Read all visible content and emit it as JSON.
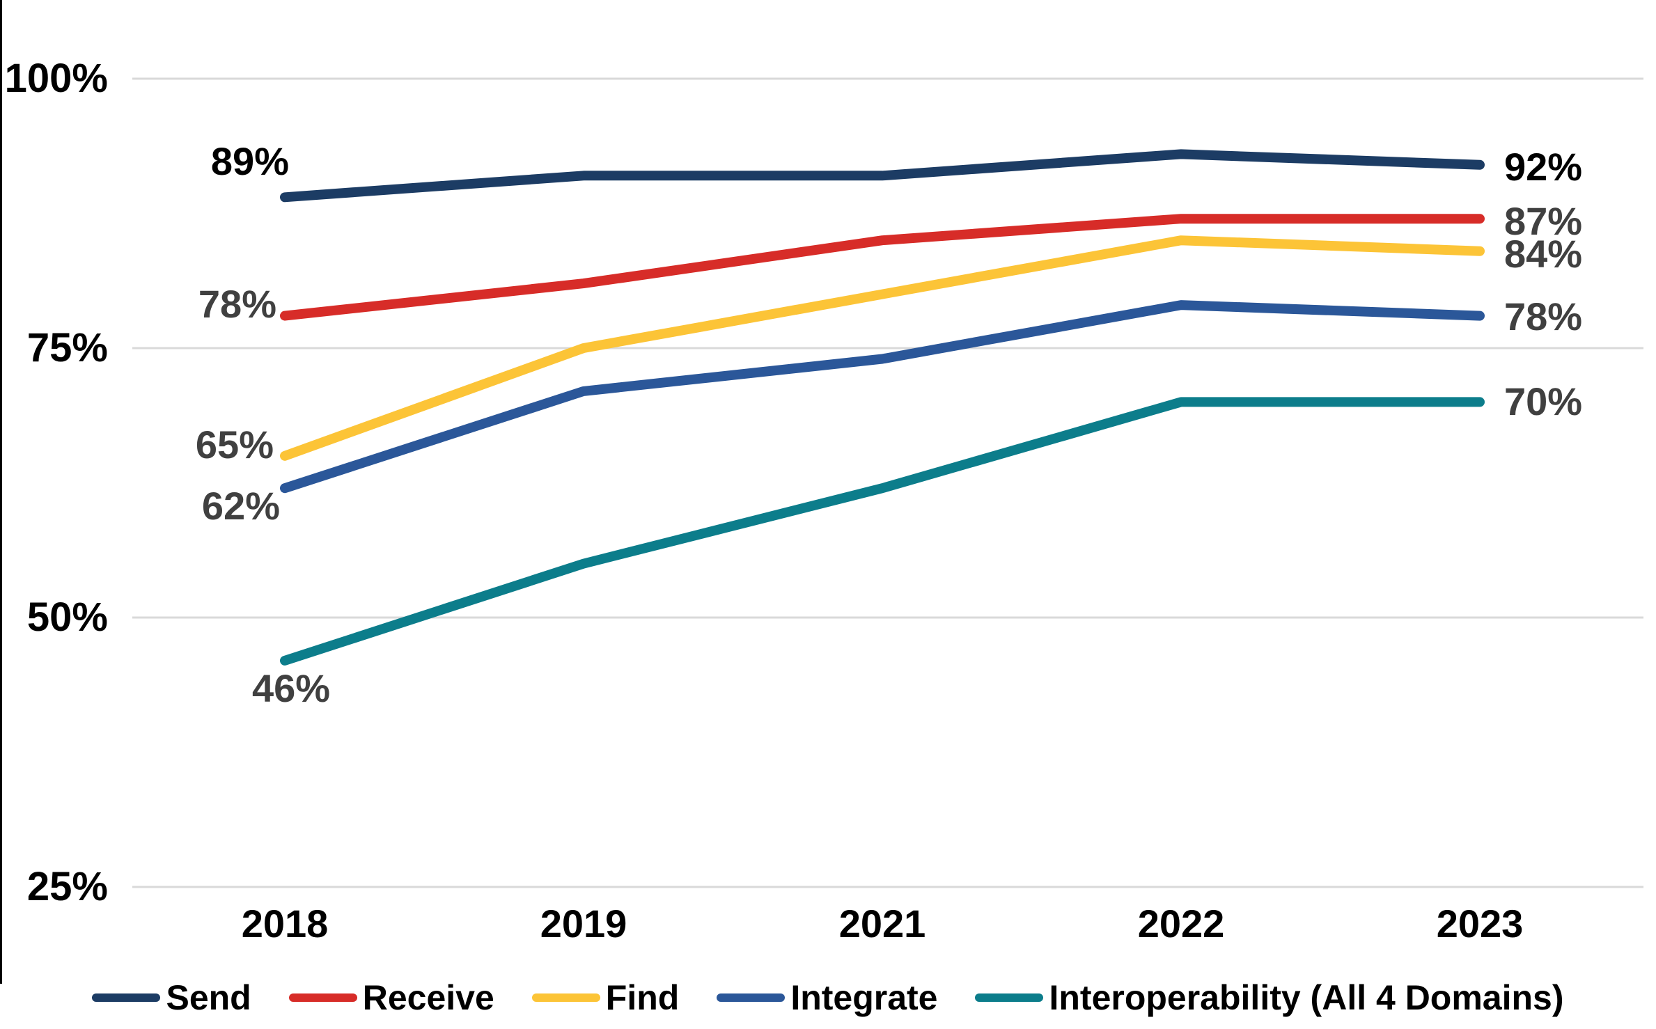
{
  "chart_data": {
    "type": "line",
    "title": "",
    "x_categories": [
      "2018",
      "2019",
      "2021",
      "2022",
      "2023"
    ],
    "y_axis": {
      "tick_labels": [
        "100%",
        "75%",
        "50%",
        "25%"
      ],
      "tick_values": [
        100,
        75,
        50,
        25
      ],
      "ylim": [
        25,
        100
      ],
      "grid": true,
      "gridline_color": "#D9D9D9"
    },
    "legend_position": "bottom",
    "series": [
      {
        "name": "Send",
        "color": "#1C3C64",
        "values": [
          89,
          91,
          91,
          93,
          92
        ],
        "first_label": "89%",
        "last_label": "92%",
        "label_color": "#000000"
      },
      {
        "name": "Receive",
        "color": "#D72C28",
        "values": [
          78,
          81,
          85,
          87,
          87
        ],
        "first_label": "78%",
        "last_label": "87%",
        "label_color": "#404040"
      },
      {
        "name": "Find",
        "color": "#FCC437",
        "values": [
          65,
          75,
          80,
          85,
          84
        ],
        "first_label": "65%",
        "last_label": "84%",
        "label_color": "#404040"
      },
      {
        "name": "Integrate",
        "color": "#2B5799",
        "values": [
          62,
          71,
          74,
          79,
          78
        ],
        "first_label": "62%",
        "last_label": "78%",
        "label_color": "#404040"
      },
      {
        "name": "Interoperability (All 4 Domains)",
        "color": "#0C7D8B",
        "values": [
          46,
          55,
          62,
          70,
          70
        ],
        "first_label": "46%",
        "last_label": "70%",
        "label_color": "#404040"
      }
    ]
  }
}
